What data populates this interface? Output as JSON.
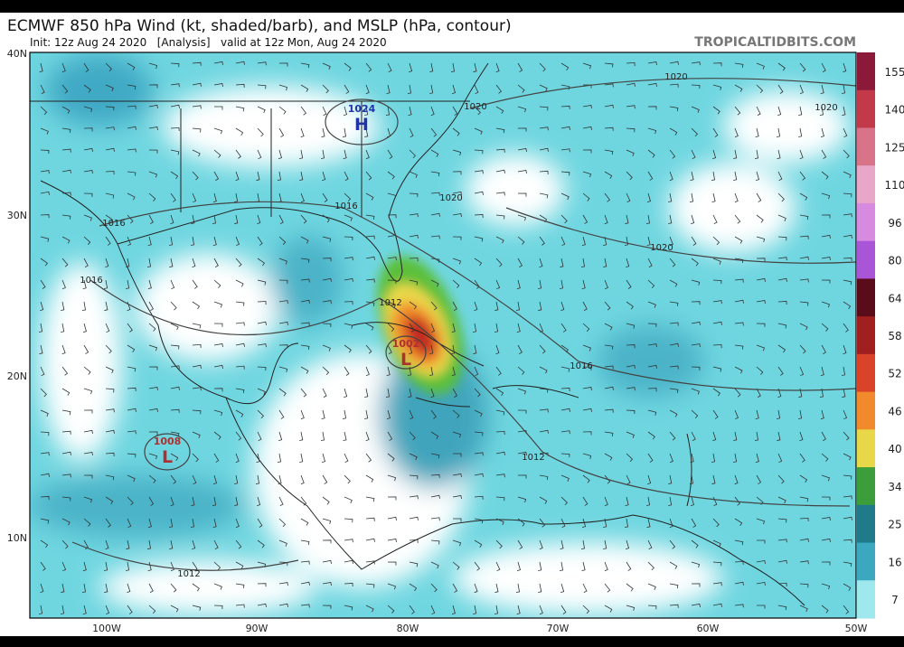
{
  "header": {
    "title": "ECMWF 850 hPa Wind (kt, shaded/barb), and MSLP (hPa, contour)",
    "subtitle": "Init: 12z Aug 24 2020   [Analysis]   valid at 12z Mon, Aug 24 2020",
    "credit": "TROPICALTIDBITS.COM"
  },
  "axes": {
    "latitude": [
      "40N",
      "30N",
      "20N",
      "10N"
    ],
    "longitude": [
      "100W",
      "90W",
      "80W",
      "70W",
      "60W",
      "50W"
    ]
  },
  "colorbar": {
    "labels": [
      155,
      140,
      125,
      110,
      96,
      80,
      64,
      58,
      52,
      46,
      40,
      34,
      25,
      16,
      7
    ],
    "colors": [
      "#8b1a3a",
      "#c23a4a",
      "#d9738a",
      "#e8a6c8",
      "#d68be0",
      "#a855d8",
      "#5a0c1a",
      "#a01f1f",
      "#d9432a",
      "#f08a2c",
      "#e9d74a",
      "#3b9e3a",
      "#1f7a8a",
      "#3ba8c0",
      "#9fe8ee"
    ]
  },
  "contours": [
    "1020",
    "1020",
    "1020",
    "1020",
    "1020",
    "1016",
    "1016",
    "1016",
    "1016",
    "1012",
    "1012",
    "1012"
  ],
  "centers": [
    {
      "pressure": "1024",
      "symbol": "H"
    },
    {
      "pressure": "1002",
      "symbol": "L"
    },
    {
      "pressure": "1008",
      "symbol": "L"
    }
  ]
}
